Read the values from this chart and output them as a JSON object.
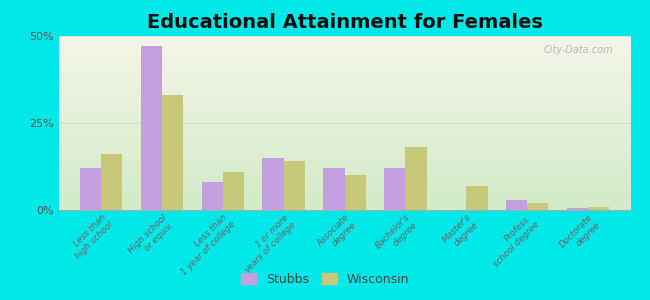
{
  "title": "Educational Attainment for Females",
  "categories": [
    "Less than\nhigh school",
    "High school\nor equiv.",
    "Less than\n1 year of college",
    "1 or more\nyears of college",
    "Associate\ndegree",
    "Bachelor's\ndegree",
    "Master's\ndegree",
    "Profess.\nschool degree",
    "Doctorate\ndegree"
  ],
  "stubbs_values": [
    12.0,
    47.0,
    8.0,
    15.0,
    12.0,
    12.0,
    0.0,
    3.0,
    0.5
  ],
  "wisconsin_values": [
    16.0,
    33.0,
    11.0,
    14.0,
    10.0,
    18.0,
    7.0,
    2.0,
    1.0
  ],
  "stubbs_color": "#c4a0e0",
  "wisconsin_color": "#c8c87a",
  "background_color": "#00e8e8",
  "ylim": [
    0,
    50
  ],
  "yticks": [
    0,
    25,
    50
  ],
  "ytick_labels": [
    "0%",
    "25%",
    "50%"
  ],
  "bar_width": 0.35,
  "title_fontsize": 14,
  "watermark": "City-Data.com",
  "grad_top": "#f5f5e8",
  "grad_bottom": "#d8edcc"
}
